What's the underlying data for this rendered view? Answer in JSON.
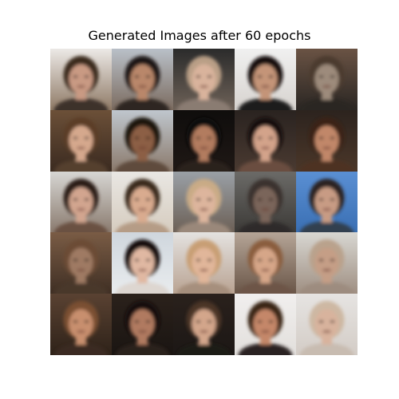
{
  "figure": {
    "title": "Generated Images after 60 epochs"
  },
  "grid": {
    "rows": 5,
    "cols": 5,
    "tiles": [
      {
        "bg_top": "#ece9e6",
        "bg_bottom": "#8f7a66",
        "hair": "#3a2a1f",
        "skin": "#c99a83",
        "cloth": "#3c3029"
      },
      {
        "bg_top": "#b9c0c8",
        "bg_bottom": "#7b6b5f",
        "hair": "#1f1612",
        "skin": "#b9876a",
        "cloth": "#2e2621"
      },
      {
        "bg_top": "#2b2b2b",
        "bg_bottom": "#6e6258",
        "hair": "#b99f86",
        "skin": "#d9b39c",
        "cloth": "#8a7c72"
      },
      {
        "bg_top": "#f0f0f0",
        "bg_bottom": "#d7d3cf",
        "hair": "#141010",
        "skin": "#c49478",
        "cloth": "#1a1a1a"
      },
      {
        "bg_top": "#6a5344",
        "bg_bottom": "#2a2623",
        "hair": "#4b3a2e",
        "skin": "#9d8b7c",
        "cloth": "#2a2623"
      },
      {
        "bg_top": "#6c5038",
        "bg_bottom": "#3a2a20",
        "hair": "#5b3d27",
        "skin": "#d5a88d",
        "cloth": "#55402f"
      },
      {
        "bg_top": "#bfc6cd",
        "bg_bottom": "#8b7a6c",
        "hair": "#1a1410",
        "skin": "#8c5e45",
        "cloth": "#5e4b3e"
      },
      {
        "bg_top": "#0f0d0c",
        "bg_bottom": "#1f1815",
        "hair": "#0f0b09",
        "skin": "#b27b5e",
        "cloth": "#2c211b"
      },
      {
        "bg_top": "#2a2320",
        "bg_bottom": "#4a3a31",
        "hair": "#120e0c",
        "skin": "#d3a38a",
        "cloth": "#6a4e40"
      },
      {
        "bg_top": "#2c231e",
        "bg_bottom": "#4b3729",
        "hair": "#3a2416",
        "skin": "#c18769",
        "cloth": "#4e3322"
      },
      {
        "bg_top": "#d7d6d3",
        "bg_bottom": "#8a7a6e",
        "hair": "#2a1c15",
        "skin": "#d2a58f",
        "cloth": "#6a5143"
      },
      {
        "bg_top": "#e9e7e3",
        "bg_bottom": "#d6ccbf",
        "hair": "#3b2a1e",
        "skin": "#d9ab8f",
        "cloth": "#b59c86"
      },
      {
        "bg_top": "#9aa0a6",
        "bg_bottom": "#6b5f55",
        "hair": "#c9ab86",
        "skin": "#ddb59d",
        "cloth": "#9a887a"
      },
      {
        "bg_top": "#6b6a67",
        "bg_bottom": "#3c3a37",
        "hair": "#3a332d",
        "skin": "#7a655a",
        "cloth": "#2f2c29"
      },
      {
        "bg_top": "#5a8fd3",
        "bg_bottom": "#3a6fb3",
        "hair": "#2a2320",
        "skin": "#c89b84",
        "cloth": "#30404f"
      },
      {
        "bg_top": "#7a5c45",
        "bg_bottom": "#3f2f24",
        "hair": "#6c4c36",
        "skin": "#9f7a63",
        "cloth": "#4a3729"
      },
      {
        "bg_top": "#cfd6dd",
        "bg_bottom": "#e9ecee",
        "hair": "#120f0e",
        "skin": "#e0b8a2",
        "cloth": "#ddd6d0"
      },
      {
        "bg_top": "#e4e2e0",
        "bg_bottom": "#b9a392",
        "hair": "#c89f74",
        "skin": "#e1b69a",
        "cloth": "#a68f7d"
      },
      {
        "bg_top": "#b5a597",
        "bg_bottom": "#6a5648",
        "hair": "#8a5d3e",
        "skin": "#d6a688",
        "cloth": "#6d5546"
      },
      {
        "bg_top": "#d8d7d2",
        "bg_bottom": "#9f8f82",
        "hair": "#b9a28c",
        "skin": "#c59e86",
        "cloth": "#9d8c7f"
      },
      {
        "bg_top": "#5a4232",
        "bg_bottom": "#2e2219",
        "hair": "#7a4f32",
        "skin": "#c88f6e",
        "cloth": "#3b2a20"
      },
      {
        "bg_top": "#2b211b",
        "bg_bottom": "#1a1512",
        "hair": "#120d0b",
        "skin": "#b07a61",
        "cloth": "#2a201a"
      },
      {
        "bg_top": "#2a211c",
        "bg_bottom": "#1c1715",
        "hair": "#4b3628",
        "skin": "#d3a68b",
        "cloth": "#1c1a19"
      },
      {
        "bg_top": "#f1efee",
        "bg_bottom": "#e2dfdc",
        "hair": "#3a2518",
        "skin": "#c48769",
        "cloth": "#2a2422"
      },
      {
        "bg_top": "#e6e4e2",
        "bg_bottom": "#d3ccc6",
        "hair": "#cdb8a3",
        "skin": "#d8b39d",
        "cloth": "#c8bcb1"
      }
    ]
  }
}
